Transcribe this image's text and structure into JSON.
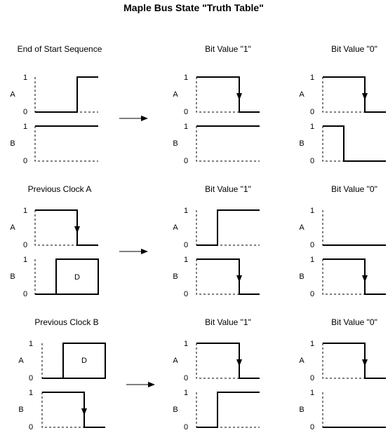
{
  "title": "Maple Bus State \"Truth Table\"",
  "labels": {
    "hi": "1",
    "lo": "0",
    "a": "A",
    "b": "B",
    "d": "D"
  },
  "sections": [
    {
      "heading": "End of Start Sequence",
      "result_1": "Bit Value \"1\"",
      "result_0": "Bit Value \"0\""
    },
    {
      "heading": "Previous Clock A",
      "result_1": "Bit Value \"1\"",
      "result_0": "Bit Value \"0\""
    },
    {
      "heading": "Previous Clock B",
      "result_1": "Bit Value \"1\"",
      "result_0": "Bit Value \"0\""
    }
  ]
}
